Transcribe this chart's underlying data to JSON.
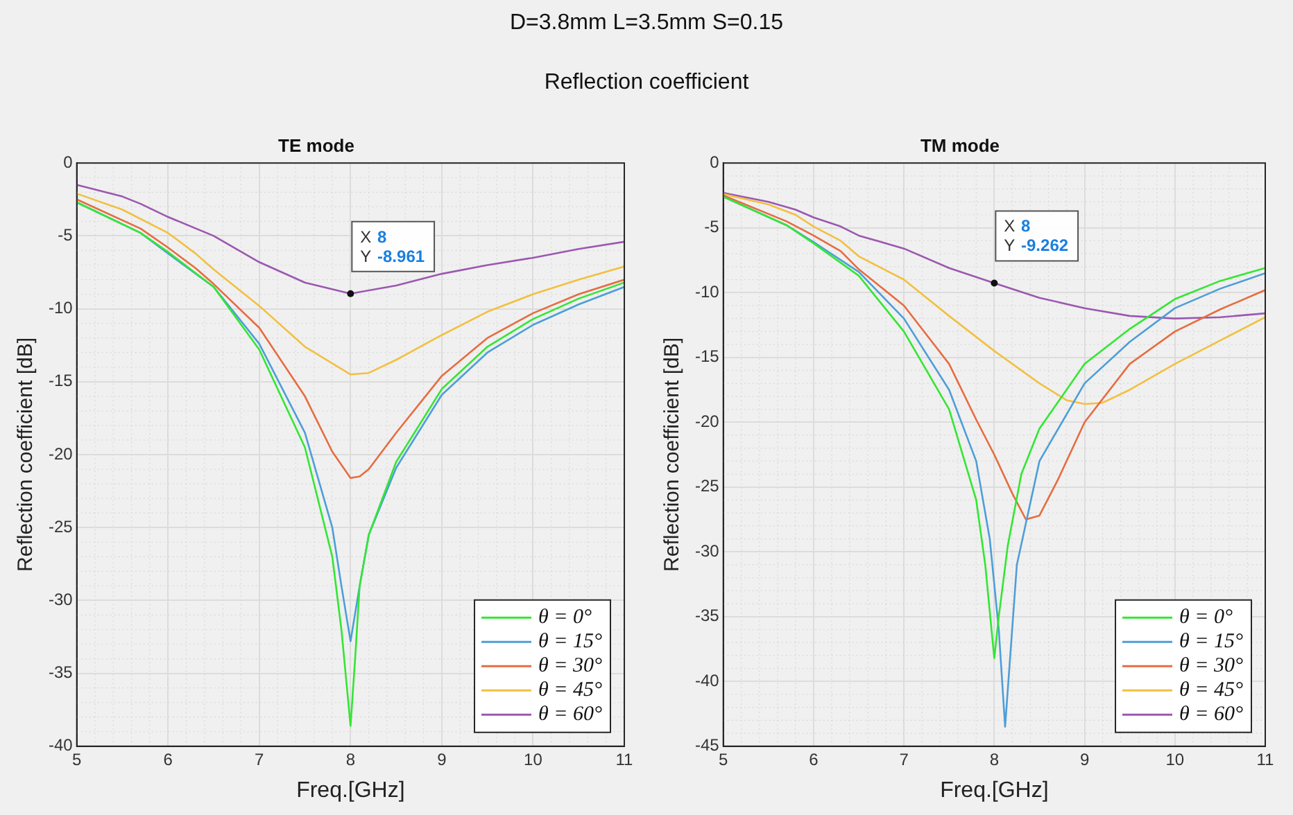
{
  "chart_data": [
    {
      "type": "line",
      "title": "TE mode",
      "annotations": [
        "D=3.8mm L=3.5mm S=0.15",
        "Reflection coefficient",
        {
          "text": "X 8\nY -8.961",
          "x": 8,
          "y": -8.961
        }
      ],
      "xlabel": "Freq.[GHz]",
      "ylabel": "Reflection coefficient [dB]",
      "xlim": [
        5,
        11
      ],
      "xticks": [
        5,
        6,
        7,
        8,
        9,
        10,
        11
      ],
      "ylim": [
        -40,
        0
      ],
      "yticks": [
        -40,
        -35,
        -30,
        -25,
        -20,
        -15,
        -10,
        -5,
        0
      ],
      "grid": true,
      "legend": "bottom right",
      "marker": "none",
      "line_style": "solid",
      "series": [
        {
          "name": "θ = 0°",
          "color": "#33e633",
          "x": [
            5,
            5.7,
            6,
            6.5,
            7,
            7.5,
            7.8,
            7.9,
            8,
            8.05,
            8.1,
            8.2,
            8.5,
            9,
            9.5,
            10,
            10.5,
            11
          ],
          "values": [
            -2.7,
            -4.8,
            -6.1,
            -8.5,
            -12.8,
            -19.5,
            -27,
            -32,
            -38.6,
            -34,
            -29,
            -25.5,
            -20.5,
            -15.5,
            -12.6,
            -10.7,
            -9.3,
            -8.2
          ]
        },
        {
          "name": "θ = 15°",
          "color": "#4d9ed8",
          "x": [
            5,
            5.7,
            6,
            6.5,
            7,
            7.5,
            7.8,
            7.9,
            8,
            8.1,
            8.2,
            8.5,
            9,
            9.5,
            10,
            10.5,
            11
          ],
          "values": [
            -2.7,
            -4.8,
            -6.2,
            -8.5,
            -12.4,
            -18.5,
            -25,
            -29,
            -32.8,
            -29,
            -25.5,
            -20.9,
            -15.9,
            -13,
            -11.1,
            -9.7,
            -8.5
          ]
        },
        {
          "name": "θ = 30°",
          "color": "#e66c40",
          "x": [
            5,
            5.7,
            6,
            6.3,
            6.5,
            7,
            7.5,
            7.8,
            8,
            8.1,
            8.2,
            8.5,
            9,
            9.5,
            10,
            10.5,
            11
          ],
          "values": [
            -2.5,
            -4.5,
            -5.8,
            -7.2,
            -8.3,
            -11.3,
            -16,
            -19.8,
            -21.6,
            -21.5,
            -21,
            -18.5,
            -14.6,
            -12,
            -10.3,
            -9,
            -8
          ]
        },
        {
          "name": "θ = 45°",
          "color": "#f2c040",
          "x": [
            5,
            5.5,
            6,
            6.3,
            6.5,
            7,
            7.5,
            8,
            8.2,
            8.5,
            9,
            9.5,
            10,
            10.5,
            11
          ],
          "values": [
            -2.1,
            -3.2,
            -4.8,
            -6.2,
            -7.3,
            -9.8,
            -12.6,
            -14.5,
            -14.4,
            -13.5,
            -11.8,
            -10.2,
            -9,
            -8,
            -7.1
          ]
        },
        {
          "name": "θ = 60°",
          "color": "#9b58b0",
          "x": [
            5,
            5.5,
            5.7,
            6,
            6.5,
            7,
            7.5,
            8,
            8.5,
            9,
            9.5,
            10,
            10.5,
            11
          ],
          "values": [
            -1.5,
            -2.3,
            -2.8,
            -3.7,
            -5,
            -6.8,
            -8.2,
            -8.961,
            -8.4,
            -7.6,
            -7,
            -6.5,
            -5.9,
            -5.4
          ]
        }
      ]
    },
    {
      "type": "line",
      "title": "TM mode",
      "annotations": [
        {
          "text": "X 8\nY -9.262",
          "x": 8,
          "y": -9.262
        }
      ],
      "xlabel": "Freq.[GHz]",
      "ylabel": "Reflection coefficient [dB]",
      "xlim": [
        5,
        11
      ],
      "xticks": [
        5,
        6,
        7,
        8,
        9,
        10,
        11
      ],
      "ylim": [
        -45,
        0
      ],
      "yticks": [
        -45,
        -40,
        -35,
        -30,
        -25,
        -20,
        -15,
        -10,
        -5,
        0
      ],
      "grid": true,
      "legend": "bottom right",
      "marker": "none",
      "line_style": "solid",
      "series": [
        {
          "name": "θ = 0°",
          "color": "#33e633",
          "x": [
            5,
            5.7,
            6,
            6.5,
            7,
            7.5,
            7.8,
            7.9,
            8,
            8.05,
            8.15,
            8.3,
            8.5,
            9,
            9.5,
            10,
            10.5,
            11
          ],
          "values": [
            -2.6,
            -4.8,
            -6.2,
            -8.7,
            -13,
            -19,
            -26,
            -31,
            -38.2,
            -35,
            -29.5,
            -24,
            -20.5,
            -15.5,
            -12.8,
            -10.5,
            -9.1,
            -8.1
          ]
        },
        {
          "name": "θ = 15°",
          "color": "#4d9ed8",
          "x": [
            5,
            5.7,
            6,
            6.5,
            7,
            7.5,
            7.8,
            7.95,
            8.05,
            8.12,
            8.25,
            8.5,
            9,
            9.5,
            10,
            10.5,
            11
          ],
          "values": [
            -2.6,
            -4.8,
            -6.1,
            -8.4,
            -12,
            -17.5,
            -23,
            -29,
            -36,
            -43.5,
            -31,
            -23,
            -17,
            -13.8,
            -11.2,
            -9.7,
            -8.5
          ]
        },
        {
          "name": "θ = 30°",
          "color": "#e66c40",
          "x": [
            5,
            5.7,
            6,
            6.3,
            6.5,
            7,
            7.5,
            7.8,
            8,
            8.2,
            8.35,
            8.5,
            8.7,
            9,
            9.5,
            10,
            10.5,
            11
          ],
          "values": [
            -2.5,
            -4.5,
            -5.6,
            -6.8,
            -8.2,
            -11,
            -15.5,
            -19.8,
            -22.5,
            -25.5,
            -27.5,
            -27.2,
            -24.5,
            -20,
            -15.5,
            -13,
            -11.3,
            -9.8
          ]
        },
        {
          "name": "θ = 45°",
          "color": "#f2c040",
          "x": [
            5,
            5.5,
            5.8,
            6,
            6.3,
            6.5,
            7,
            7.5,
            8,
            8.5,
            8.8,
            9,
            9.2,
            9.5,
            10,
            10.5,
            11
          ],
          "values": [
            -2.4,
            -3.2,
            -4,
            -4.9,
            -6,
            -7.2,
            -9,
            -11.8,
            -14.5,
            -17,
            -18.3,
            -18.6,
            -18.5,
            -17.5,
            -15.5,
            -13.7,
            -11.9
          ]
        },
        {
          "name": "θ = 60°",
          "color": "#9b58b0",
          "x": [
            5,
            5.5,
            5.8,
            6,
            6.3,
            6.5,
            7,
            7.5,
            8,
            8.5,
            9,
            9.5,
            10,
            10.5,
            11
          ],
          "values": [
            -2.3,
            -3,
            -3.6,
            -4.2,
            -4.9,
            -5.6,
            -6.6,
            -8.1,
            -9.262,
            -10.4,
            -11.2,
            -11.8,
            -12,
            -11.9,
            -11.6
          ]
        }
      ]
    }
  ]
}
